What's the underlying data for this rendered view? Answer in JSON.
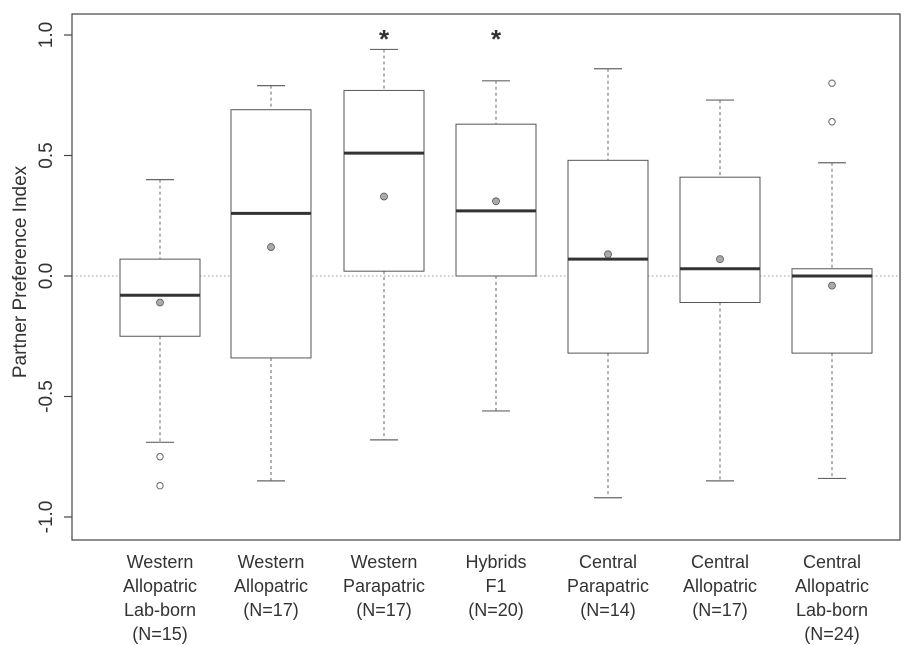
{
  "chart_data": {
    "type": "boxplot",
    "ylabel": "Partner Preference Index",
    "ylim": [
      -1.1,
      1.1
    ],
    "yticks": [
      -1.0,
      -0.5,
      0.0,
      0.5,
      1.0
    ],
    "ytick_labels": [
      "-1.0",
      "-0.5",
      "0.0",
      "0.5",
      "1.0"
    ],
    "reference_line": 0.0,
    "categories": [
      {
        "label_lines": [
          "Western",
          "Allopatric",
          "Lab-born",
          "(N=15)"
        ],
        "whisker_low": -0.69,
        "q1": -0.25,
        "median": -0.08,
        "q3": 0.07,
        "whisker_high": 0.4,
        "mean": -0.11,
        "outliers": [
          -0.75,
          -0.87
        ],
        "marker": ""
      },
      {
        "label_lines": [
          "Western",
          "Allopatric",
          "(N=17)"
        ],
        "whisker_low": -0.85,
        "q1": -0.34,
        "median": 0.26,
        "q3": 0.69,
        "whisker_high": 0.79,
        "mean": 0.12,
        "outliers": [],
        "marker": ""
      },
      {
        "label_lines": [
          "Western",
          "Parapatric",
          "(N=17)"
        ],
        "whisker_low": -0.68,
        "q1": 0.02,
        "median": 0.51,
        "q3": 0.77,
        "whisker_high": 0.94,
        "mean": 0.33,
        "outliers": [],
        "marker": "*"
      },
      {
        "label_lines": [
          "Hybrids",
          "F1",
          "(N=20)"
        ],
        "whisker_low": -0.56,
        "q1": 0.0,
        "median": 0.27,
        "q3": 0.63,
        "whisker_high": 0.81,
        "mean": 0.31,
        "outliers": [],
        "marker": "*"
      },
      {
        "label_lines": [
          "Central",
          "Parapatric",
          "(N=14)"
        ],
        "whisker_low": -0.92,
        "q1": -0.32,
        "median": 0.07,
        "q3": 0.48,
        "whisker_high": 0.86,
        "mean": 0.09,
        "outliers": [],
        "marker": ""
      },
      {
        "label_lines": [
          "Central",
          "Allopatric",
          "(N=17)"
        ],
        "whisker_low": -0.85,
        "q1": -0.11,
        "median": 0.03,
        "q3": 0.41,
        "whisker_high": 0.73,
        "mean": 0.07,
        "outliers": [],
        "marker": ""
      },
      {
        "label_lines": [
          "Central",
          "Allopatric",
          "Lab-born",
          "(N=24)"
        ],
        "whisker_low": -0.84,
        "q1": -0.32,
        "median": 0.0,
        "q3": 0.03,
        "whisker_high": 0.47,
        "mean": -0.04,
        "outliers": [
          0.64,
          0.8
        ],
        "marker": ""
      }
    ],
    "colors": {
      "box_stroke": "#555555",
      "median": "#333333",
      "whisker": "#666666",
      "reference_line": "#999999",
      "mean_point": "#aaaaaa"
    },
    "grid": false,
    "legend": "none"
  }
}
